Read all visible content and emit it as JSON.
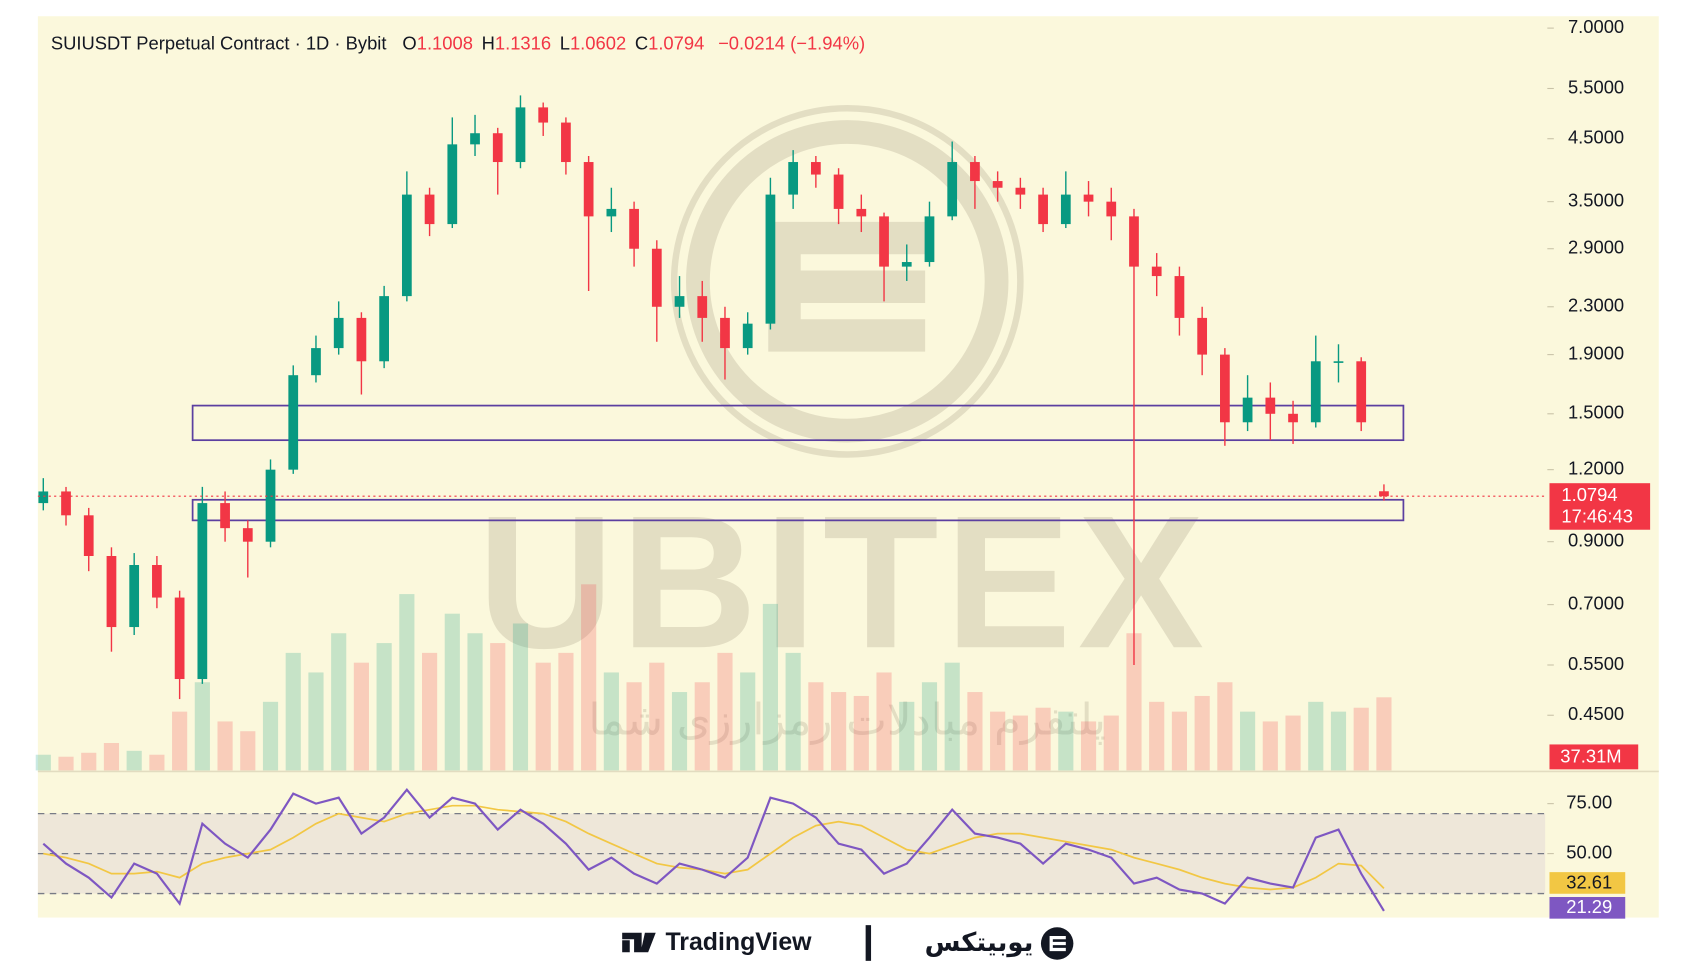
{
  "header": {
    "title": "SUIUSDT Perpetual Contract · 1D · Bybit",
    "ohlc": [
      {
        "key": "O",
        "value": 1.1008
      },
      {
        "key": "H",
        "value": 1.1316
      },
      {
        "key": "L",
        "value": 1.0602
      },
      {
        "key": "C",
        "value": 1.0794
      }
    ],
    "change": "−0.0214 (−1.94%)"
  },
  "watermark": {
    "brand": "UBITEX",
    "tagline": "پلتفرم مبادلات رمزارزی شما"
  },
  "footer": {
    "tradingview": "TradingView",
    "brand_fa": "یوبیتکس"
  },
  "chart_data": [
    {
      "type": "candlestick",
      "log": true,
      "ylim": [
        0.361,
        7.34
      ],
      "up_color": "#089981",
      "down_color": "#f23645",
      "yticks": [
        {
          "value": 7,
          "label": "7.0000"
        },
        {
          "value": 5.5,
          "label": "5.5000"
        },
        {
          "value": 4.5,
          "label": "4.5000"
        },
        {
          "value": 3.5,
          "label": "3.5000"
        },
        {
          "value": 2.9,
          "label": "2.9000"
        },
        {
          "value": 2.3,
          "label": "2.3000"
        },
        {
          "value": 1.9,
          "label": "1.9000"
        },
        {
          "value": 1.5,
          "label": "1.5000"
        },
        {
          "value": 1.2,
          "label": "1.2000"
        },
        {
          "value": 0.9,
          "label": "0.9000"
        },
        {
          "value": 0.7,
          "label": "0.7000"
        },
        {
          "value": 0.55,
          "label": "0.5500"
        },
        {
          "value": 0.45,
          "label": "0.4500"
        }
      ],
      "open": [
        1.05,
        1.1,
        1.0,
        0.85,
        0.64,
        0.82,
        0.72,
        0.52,
        1.05,
        0.95,
        0.9,
        1.2,
        1.75,
        1.95,
        2.2,
        1.85,
        2.4,
        3.6,
        3.2,
        4.4,
        4.6,
        4.1,
        5.1,
        4.8,
        4.1,
        3.3,
        3.4,
        2.9,
        2.3,
        2.4,
        2.2,
        1.95,
        2.15,
        3.6,
        4.1,
        3.9,
        3.4,
        3.3,
        2.7,
        2.75,
        3.3,
        4.1,
        3.8,
        3.7,
        3.6,
        3.2,
        3.6,
        3.5,
        3.3,
        2.7,
        2.6,
        2.2,
        1.9,
        1.45,
        1.6,
        1.5,
        1.45,
        1.85,
        1.85,
        1.1008
      ],
      "high": [
        1.16,
        1.12,
        1.03,
        0.88,
        0.86,
        0.85,
        0.74,
        1.12,
        1.1,
        0.98,
        1.25,
        1.82,
        2.05,
        2.35,
        2.25,
        2.5,
        3.95,
        3.7,
        4.9,
        4.95,
        4.7,
        5.35,
        5.2,
        4.9,
        4.2,
        3.7,
        3.5,
        3.0,
        2.6,
        2.55,
        2.3,
        2.25,
        3.85,
        4.3,
        4.2,
        4.0,
        3.6,
        3.35,
        2.95,
        3.5,
        4.45,
        4.2,
        3.95,
        3.85,
        3.7,
        3.95,
        3.8,
        3.7,
        3.4,
        2.85,
        2.7,
        2.3,
        1.95,
        1.75,
        1.7,
        1.58,
        2.05,
        1.98,
        1.88,
        1.1316
      ],
      "low": [
        1.02,
        0.96,
        0.8,
        0.58,
        0.62,
        0.69,
        0.48,
        0.51,
        0.9,
        0.78,
        0.88,
        1.18,
        1.7,
        1.9,
        1.62,
        1.8,
        2.35,
        3.05,
        3.15,
        4.2,
        3.6,
        4.0,
        4.55,
        3.9,
        2.45,
        3.1,
        2.7,
        2.0,
        2.2,
        2.0,
        1.72,
        1.9,
        2.1,
        3.4,
        3.7,
        3.2,
        3.1,
        2.35,
        2.55,
        2.7,
        3.25,
        3.4,
        3.5,
        3.4,
        3.1,
        3.15,
        3.3,
        3.0,
        0.55,
        2.4,
        2.05,
        1.75,
        1.32,
        1.4,
        1.35,
        1.33,
        1.42,
        1.7,
        1.4,
        1.0602
      ],
      "close": [
        1.1,
        1.0,
        0.85,
        0.64,
        0.82,
        0.72,
        0.52,
        1.05,
        0.95,
        0.9,
        1.2,
        1.75,
        1.95,
        2.2,
        1.85,
        2.4,
        3.6,
        3.2,
        4.4,
        4.6,
        4.1,
        5.1,
        4.8,
        4.1,
        3.3,
        3.4,
        2.9,
        2.3,
        2.4,
        2.2,
        1.95,
        2.15,
        3.6,
        4.1,
        3.9,
        3.4,
        3.3,
        2.7,
        2.75,
        3.3,
        4.1,
        3.8,
        3.7,
        3.6,
        3.2,
        3.6,
        3.5,
        3.3,
        2.7,
        2.6,
        2.2,
        1.9,
        1.45,
        1.6,
        1.5,
        1.45,
        1.85,
        1.85,
        1.45,
        1.0794
      ],
      "countdown": "17:46:43",
      "volume": [
        8,
        7,
        9,
        14,
        10,
        8,
        30,
        45,
        25,
        20,
        35,
        60,
        50,
        70,
        55,
        65,
        90,
        60,
        80,
        70,
        65,
        75,
        55,
        60,
        95,
        50,
        45,
        55,
        40,
        45,
        60,
        50,
        85,
        60,
        45,
        40,
        38,
        50,
        35,
        45,
        55,
        40,
        30,
        28,
        32,
        30,
        25,
        28,
        70,
        35,
        30,
        38,
        45,
        30,
        25,
        28,
        35,
        30,
        32,
        37.31
      ],
      "volume_last_label": "37.31M",
      "zones": [
        [
          1.35,
          1.55
        ],
        [
          0.98,
          1.064
        ]
      ],
      "zone_color": "#5b3fa0"
    },
    {
      "type": "line",
      "ylim": [
        18,
        90
      ],
      "yticks": [
        {
          "value": 75,
          "label": "75.00"
        },
        {
          "value": 50,
          "label": "50.00"
        }
      ],
      "levels": [
        70,
        50,
        30
      ],
      "series": [
        {
          "color": "#7e57c2",
          "values": [
            55,
            45,
            38,
            28,
            45,
            40,
            25,
            65,
            55,
            48,
            62,
            80,
            75,
            78,
            60,
            68,
            82,
            68,
            78,
            75,
            62,
            72,
            65,
            55,
            42,
            48,
            40,
            35,
            45,
            42,
            38,
            48,
            78,
            75,
            68,
            55,
            52,
            40,
            45,
            58,
            72,
            60,
            58,
            55,
            45,
            55,
            52,
            48,
            35,
            38,
            32,
            30,
            25,
            38,
            35,
            33,
            58,
            62,
            40,
            21.29
          ]
        },
        {
          "color": "#f2c744",
          "values": [
            50,
            48,
            45,
            40,
            40,
            41,
            38,
            45,
            48,
            50,
            52,
            58,
            65,
            70,
            68,
            66,
            70,
            72,
            74,
            74,
            72,
            71,
            70,
            66,
            60,
            55,
            50,
            45,
            43,
            42,
            40,
            42,
            50,
            58,
            64,
            66,
            64,
            58,
            52,
            50,
            54,
            58,
            60,
            60,
            58,
            56,
            54,
            52,
            48,
            45,
            42,
            38,
            35,
            33,
            32,
            33,
            38,
            45,
            44,
            32.61
          ]
        }
      ]
    }
  ]
}
